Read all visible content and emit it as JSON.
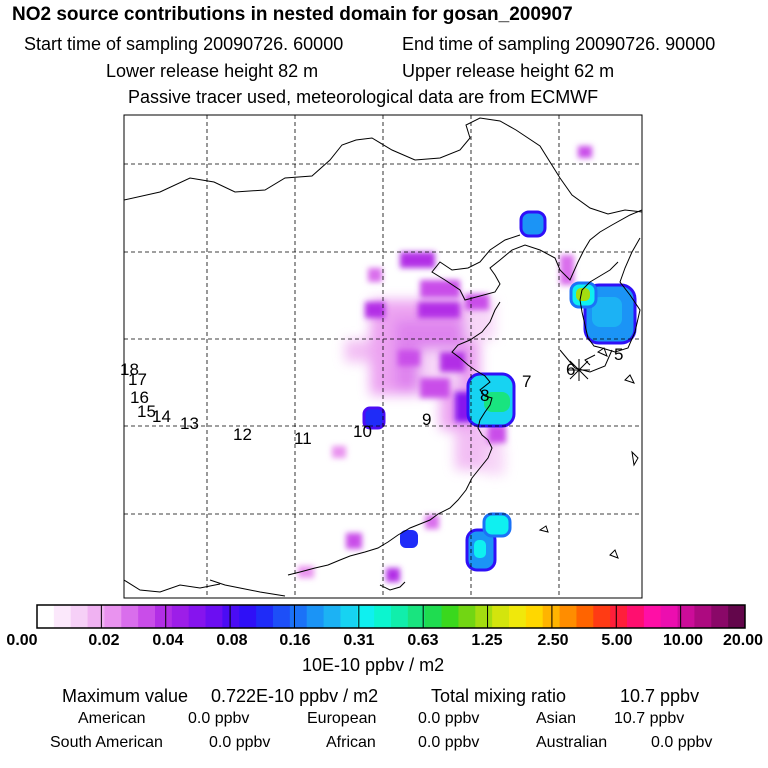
{
  "header": {
    "title": "NO2 source contributions in nested domain for gosan_200907",
    "start_time": "Start time of sampling 20090726. 60000",
    "end_time": "End time of sampling 20090726. 90000",
    "lower_height": "Lower release height   82 m",
    "upper_height": "Upper release height   62 m",
    "tracer_note": "Passive tracer used, meteorological data are from ECMWF"
  },
  "trajectory_labels": [
    "18",
    "17",
    "16",
    "15",
    "14",
    "13",
    "12",
    "11",
    "10",
    "9",
    "8",
    "7",
    "6",
    "5"
  ],
  "colorbar": {
    "ticks": [
      "0.00",
      "0.02",
      "0.04",
      "0.08",
      "0.16",
      "0.31",
      "0.63",
      "1.25",
      "2.50",
      "5.00",
      "10.00",
      "20.00"
    ],
    "unit": "10E-10 ppbv / m2",
    "colors": [
      "#ffffff",
      "#fbe8fb",
      "#f6d0f7",
      "#f0b2f2",
      "#e993ef",
      "#d96eec",
      "#c94de9",
      "#b22ee6",
      "#9d1ee8",
      "#8614ee",
      "#6c0ef2",
      "#4b0cf4",
      "#2f10f7",
      "#1f2cf8",
      "#1d4ff8",
      "#1b72f7",
      "#1b94f6",
      "#1cb2f4",
      "#17d3f2",
      "#0ff0f0",
      "#0cf5cf",
      "#11eeab",
      "#19e47f",
      "#1fdc50",
      "#3ad81d",
      "#72d613",
      "#a4dd10",
      "#d3e40d",
      "#f0e80b",
      "#ffd700",
      "#ffb400",
      "#ff8d00",
      "#ff6400",
      "#ff3b14",
      "#ff1f3a",
      "#ff0f6f",
      "#ff0fa6",
      "#ec0eaf",
      "#cc0c99",
      "#ad0a80",
      "#8a0868",
      "#63064b"
    ]
  },
  "stats": {
    "max_label": "Maximum value",
    "max_value": "0.722E-10 ppbv / m2",
    "total_label": "Total mixing ratio",
    "total_value": "10.7 ppbv",
    "regions": [
      {
        "name": "American",
        "value": "0.0 ppbv"
      },
      {
        "name": "European",
        "value": "0.0 ppbv"
      },
      {
        "name": "Asian",
        "value": "10.7 ppbv"
      },
      {
        "name": "South American",
        "value": "0.0 ppbv"
      },
      {
        "name": "African",
        "value": "0.0 ppbv"
      },
      {
        "name": "Australian",
        "value": "0.0 ppbv"
      }
    ]
  }
}
